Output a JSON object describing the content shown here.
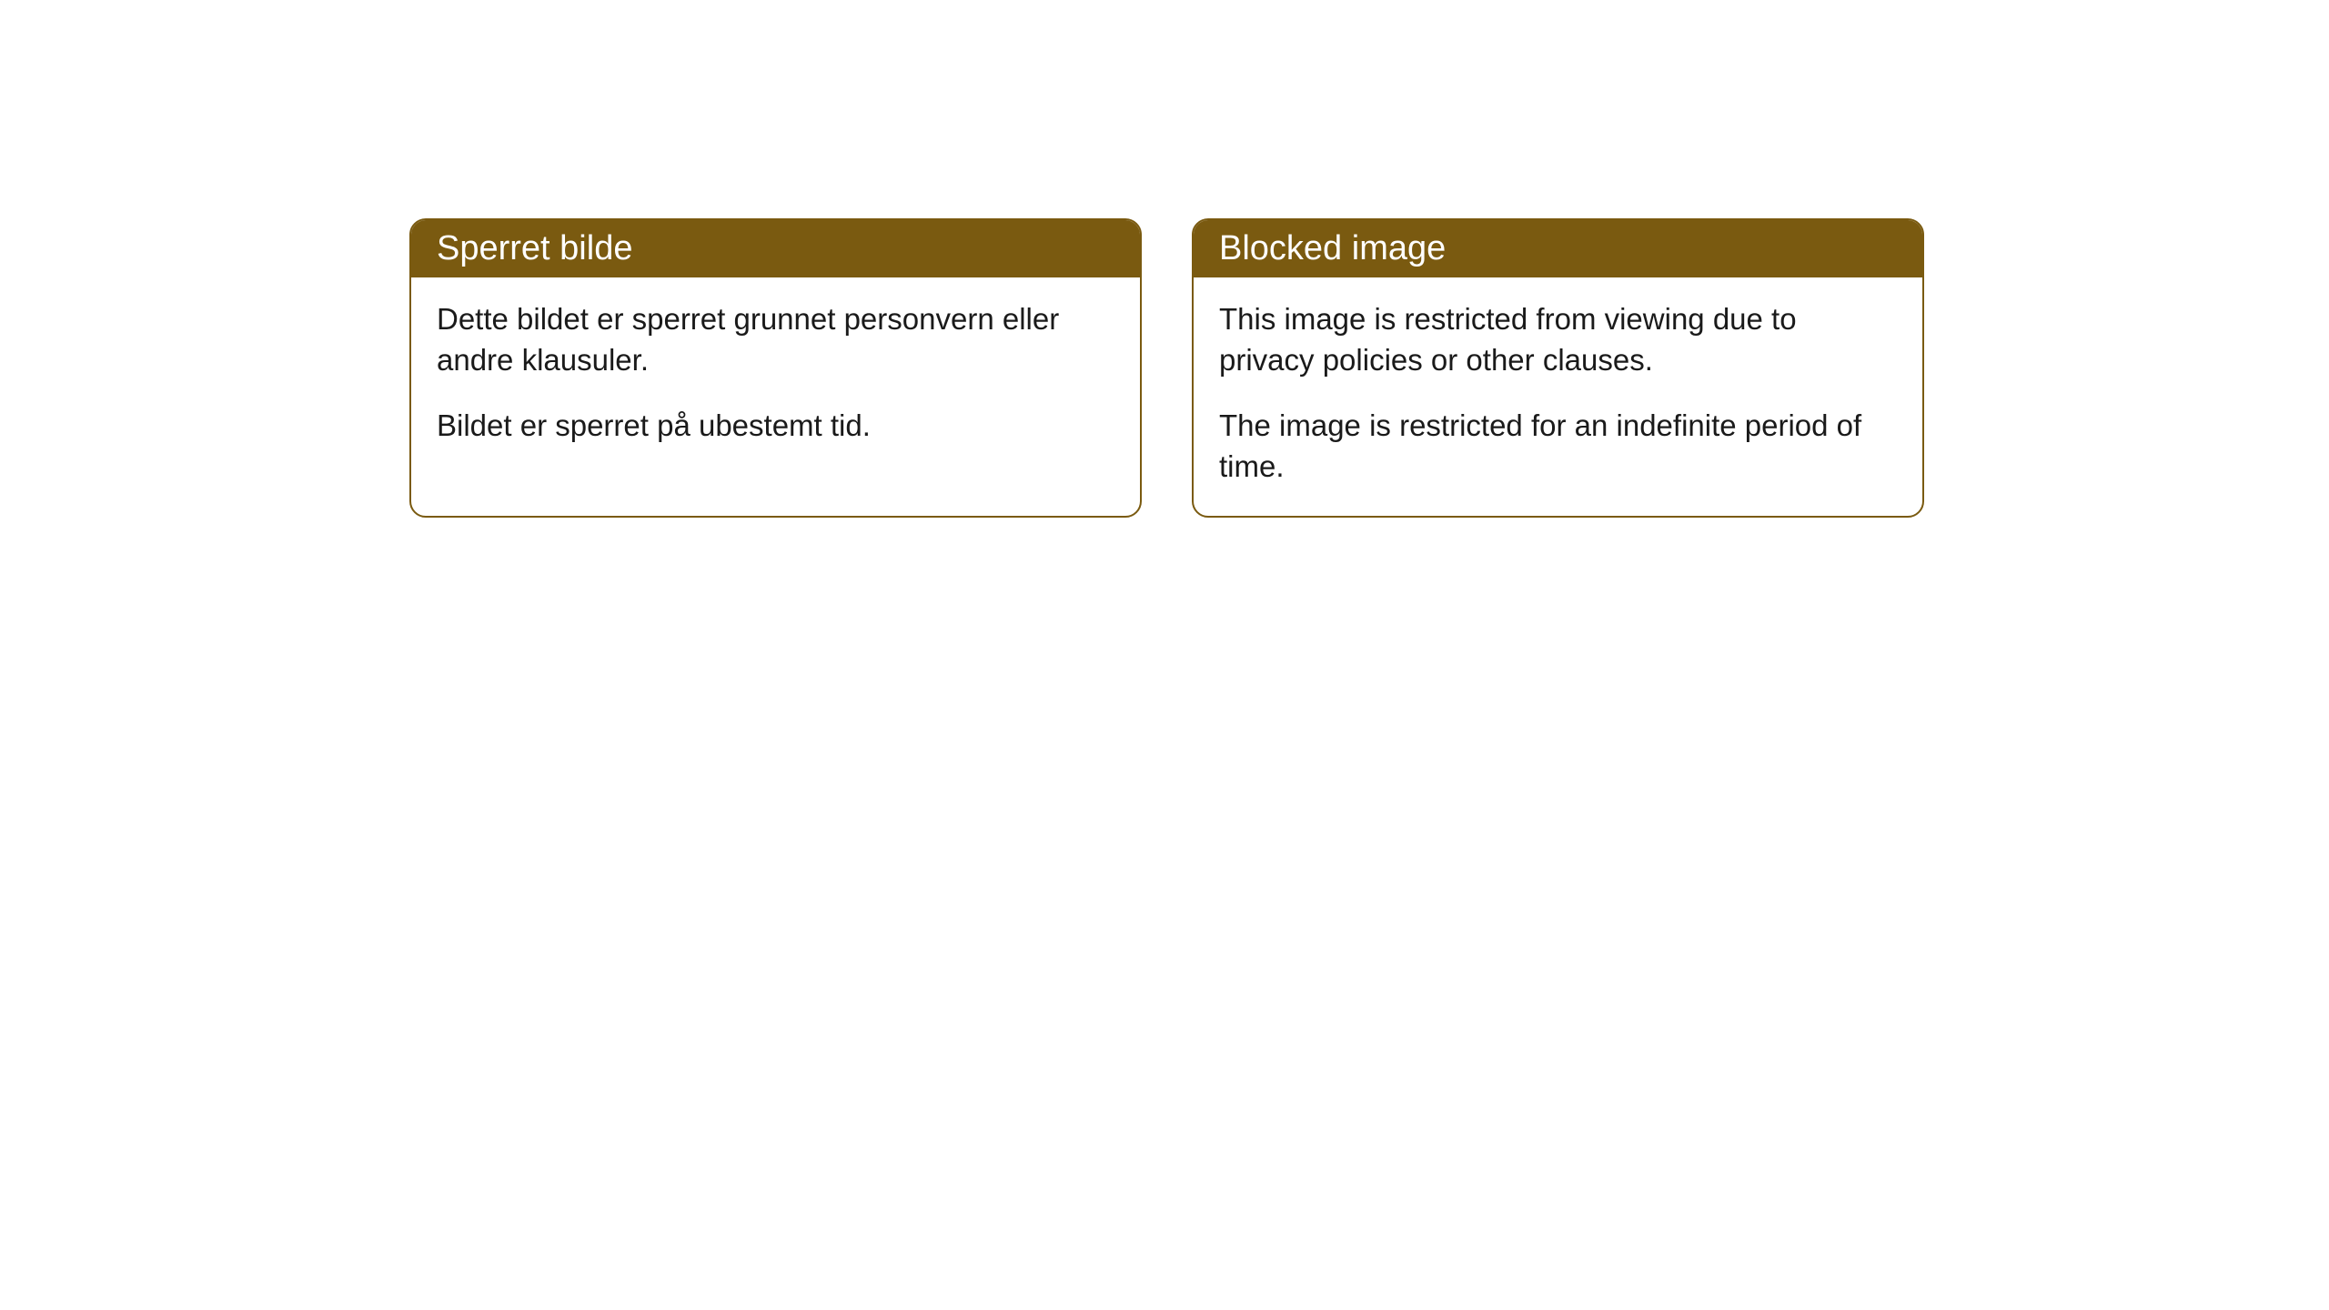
{
  "cards": [
    {
      "title": "Sperret bilde",
      "paragraph1": "Dette bildet er sperret grunnet personvern eller andre klausuler.",
      "paragraph2": "Bildet er sperret på ubestemt tid."
    },
    {
      "title": "Blocked image",
      "paragraph1": "This image is restricted from viewing due to privacy policies or other clauses.",
      "paragraph2": "The image is restricted for an indefinite period of time."
    }
  ],
  "colors": {
    "header_bg": "#7a5a10",
    "header_text": "#ffffff",
    "body_text": "#1a1a1a",
    "border": "#7a5a10",
    "page_bg": "#ffffff"
  }
}
